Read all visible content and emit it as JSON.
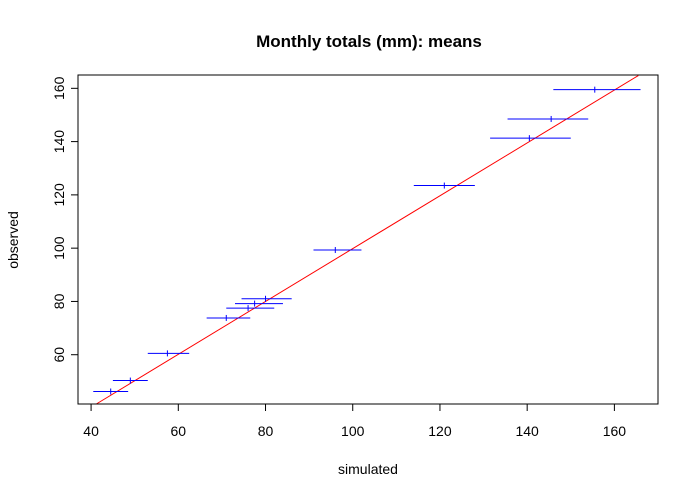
{
  "chart_data": {
    "type": "scatter",
    "title": "Monthly totals (mm): means",
    "xlabel": "simulated",
    "ylabel": "observed",
    "xlim": [
      37,
      170
    ],
    "ylim": [
      41.5,
      165
    ],
    "xticks": [
      40,
      60,
      80,
      100,
      120,
      140,
      160
    ],
    "yticks": [
      60,
      80,
      100,
      120,
      140,
      160
    ],
    "grid": false,
    "points": [
      {
        "x": 44.5,
        "y": 46.2,
        "xerr": [
          40.5,
          48.5
        ]
      },
      {
        "x": 49.0,
        "y": 50.3,
        "xerr": [
          45.0,
          53.0
        ]
      },
      {
        "x": 57.5,
        "y": 60.5,
        "xerr": [
          53.0,
          62.5
        ]
      },
      {
        "x": 71.0,
        "y": 73.8,
        "xerr": [
          66.5,
          76.5
        ]
      },
      {
        "x": 76.0,
        "y": 77.5,
        "xerr": [
          71.0,
          82.0
        ]
      },
      {
        "x": 77.5,
        "y": 79.2,
        "xerr": [
          73.0,
          84.0
        ]
      },
      {
        "x": 80.0,
        "y": 81.0,
        "xerr": [
          74.5,
          86.0
        ]
      },
      {
        "x": 96.0,
        "y": 99.3,
        "xerr": [
          91.0,
          102.0
        ]
      },
      {
        "x": 121.0,
        "y": 123.5,
        "xerr": [
          114.0,
          128.0
        ]
      },
      {
        "x": 140.5,
        "y": 141.3,
        "xerr": [
          131.5,
          150.0
        ]
      },
      {
        "x": 145.5,
        "y": 148.5,
        "xerr": [
          135.5,
          154.0
        ]
      },
      {
        "x": 155.5,
        "y": 159.5,
        "xerr": [
          146.0,
          166.0
        ]
      }
    ],
    "reference_line": {
      "x": [
        41.2,
        165.5
      ],
      "y": [
        41.5,
        164.8
      ]
    },
    "colors": {
      "points": "#0000ff",
      "reference_line": "#ff0000"
    }
  }
}
